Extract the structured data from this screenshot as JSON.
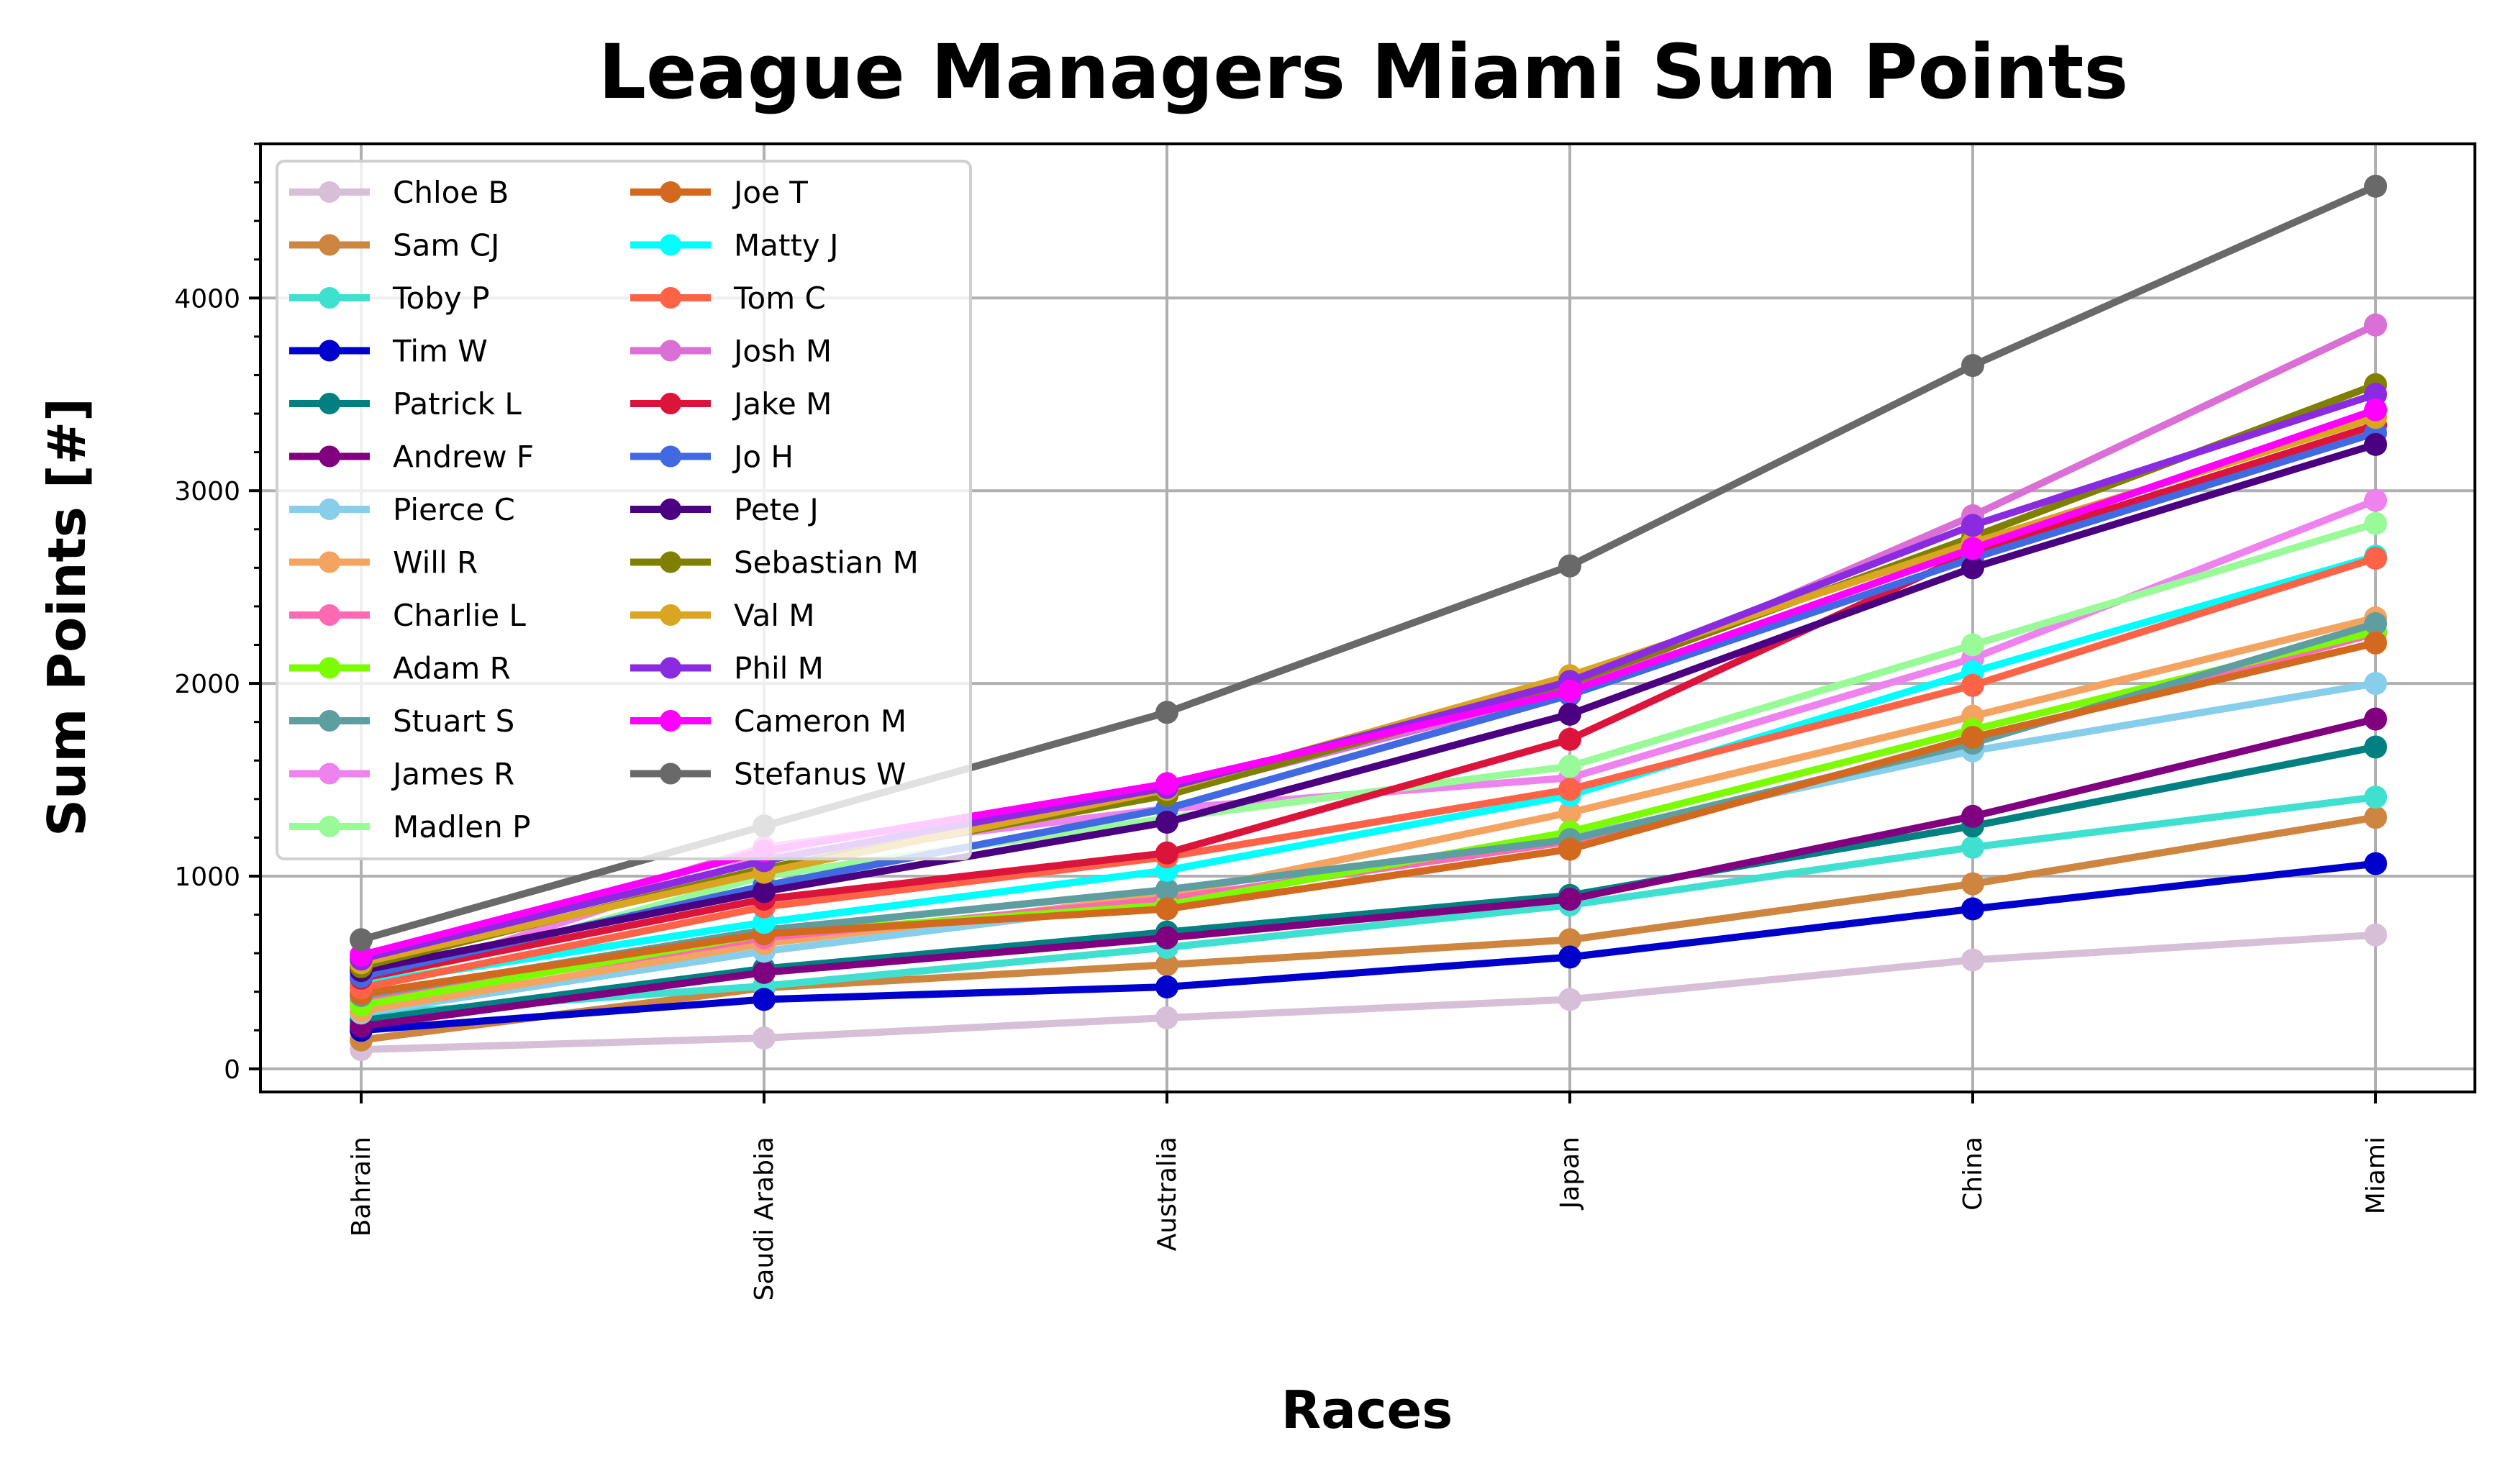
{
  "chart_data": {
    "type": "line",
    "title": "League Managers Miami Sum Points",
    "xlabel": "Races",
    "ylabel": "Sum Points [#]",
    "categories": [
      "Bahrain",
      "Saudi Arabia",
      "Australia",
      "Japan",
      "China",
      "Miami"
    ],
    "ylim": [
      -120,
      4800
    ],
    "yticks": [
      0,
      1000,
      2000,
      3000,
      4000
    ],
    "y_minor_step": 200,
    "grid": true,
    "legend_position": "top-left",
    "legend_columns": 2,
    "series": [
      {
        "name": "Chloe B",
        "color": "#d8bfd8",
        "values": [
          100,
          160,
          265,
          360,
          565,
          695
        ]
      },
      {
        "name": "Sam CJ",
        "color": "#cd853f",
        "values": [
          150,
          420,
          540,
          670,
          960,
          1305
        ]
      },
      {
        "name": "Toby P",
        "color": "#40e0d0",
        "values": [
          280,
          430,
          630,
          850,
          1150,
          1410
        ]
      },
      {
        "name": "Tim W",
        "color": "#0000cd",
        "values": [
          200,
          360,
          425,
          580,
          830,
          1065
        ]
      },
      {
        "name": "Patrick L",
        "color": "#008080",
        "values": [
          250,
          520,
          710,
          900,
          1260,
          1670
        ]
      },
      {
        "name": "Andrew F",
        "color": "#800080",
        "values": [
          220,
          500,
          680,
          880,
          1310,
          1815
        ]
      },
      {
        "name": "Pierce C",
        "color": "#87ceeb",
        "values": [
          290,
          610,
          870,
          1200,
          1650,
          2000
        ]
      },
      {
        "name": "Will R",
        "color": "#f4a460",
        "values": [
          300,
          650,
          900,
          1330,
          1830,
          2340
        ]
      },
      {
        "name": "Charlie L",
        "color": "#ff69b4",
        "values": [
          350,
          680,
          880,
          1180,
          1700,
          2260
        ]
      },
      {
        "name": "Adam R",
        "color": "#7cfc00",
        "values": [
          330,
          700,
          850,
          1230,
          1760,
          2270
        ]
      },
      {
        "name": "Stuart S",
        "color": "#5f9ea0",
        "values": [
          380,
          720,
          930,
          1190,
          1690,
          2310
        ]
      },
      {
        "name": "James R",
        "color": "#ee82ee",
        "values": [
          420,
          1100,
          1350,
          1510,
          2130,
          2950
        ]
      },
      {
        "name": "Madlen P",
        "color": "#98fb98",
        "values": [
          430,
          1000,
          1300,
          1570,
          2200,
          2830
        ]
      },
      {
        "name": "Joe T",
        "color": "#d2691e",
        "values": [
          390,
          700,
          830,
          1140,
          1720,
          2210
        ]
      },
      {
        "name": "Matty J",
        "color": "#00ffff",
        "values": [
          440,
          760,
          1030,
          1420,
          2060,
          2660
        ]
      },
      {
        "name": "Tom C",
        "color": "#ff6347",
        "values": [
          420,
          840,
          1100,
          1450,
          1990,
          2650
        ]
      },
      {
        "name": "Josh M",
        "color": "#da70d6",
        "values": [
          520,
          1150,
          1430,
          1960,
          2870,
          3860
        ]
      },
      {
        "name": "Jake M",
        "color": "#dc143c",
        "values": [
          470,
          880,
          1120,
          1710,
          2680,
          3340
        ]
      },
      {
        "name": "Jo H",
        "color": "#4169e1",
        "values": [
          480,
          950,
          1350,
          1940,
          2650,
          3300
        ]
      },
      {
        "name": "Pete J",
        "color": "#4b0082",
        "values": [
          510,
          920,
          1280,
          1840,
          2600,
          3240
        ]
      },
      {
        "name": "Sebastian M",
        "color": "#808000",
        "values": [
          530,
          1040,
          1420,
          2000,
          2760,
          3550
        ]
      },
      {
        "name": "Val M",
        "color": "#daa520",
        "values": [
          550,
          1020,
          1450,
          2040,
          2730,
          3380
        ]
      },
      {
        "name": "Phil M",
        "color": "#8a2be2",
        "values": [
          570,
          1080,
          1460,
          2010,
          2820,
          3500
        ]
      },
      {
        "name": "Cameron M",
        "color": "#ff00ff",
        "values": [
          590,
          1130,
          1480,
          1960,
          2700,
          3420
        ]
      },
      {
        "name": "Stefanus W",
        "color": "#696969",
        "values": [
          670,
          1260,
          1850,
          2610,
          3650,
          4580
        ]
      }
    ]
  }
}
